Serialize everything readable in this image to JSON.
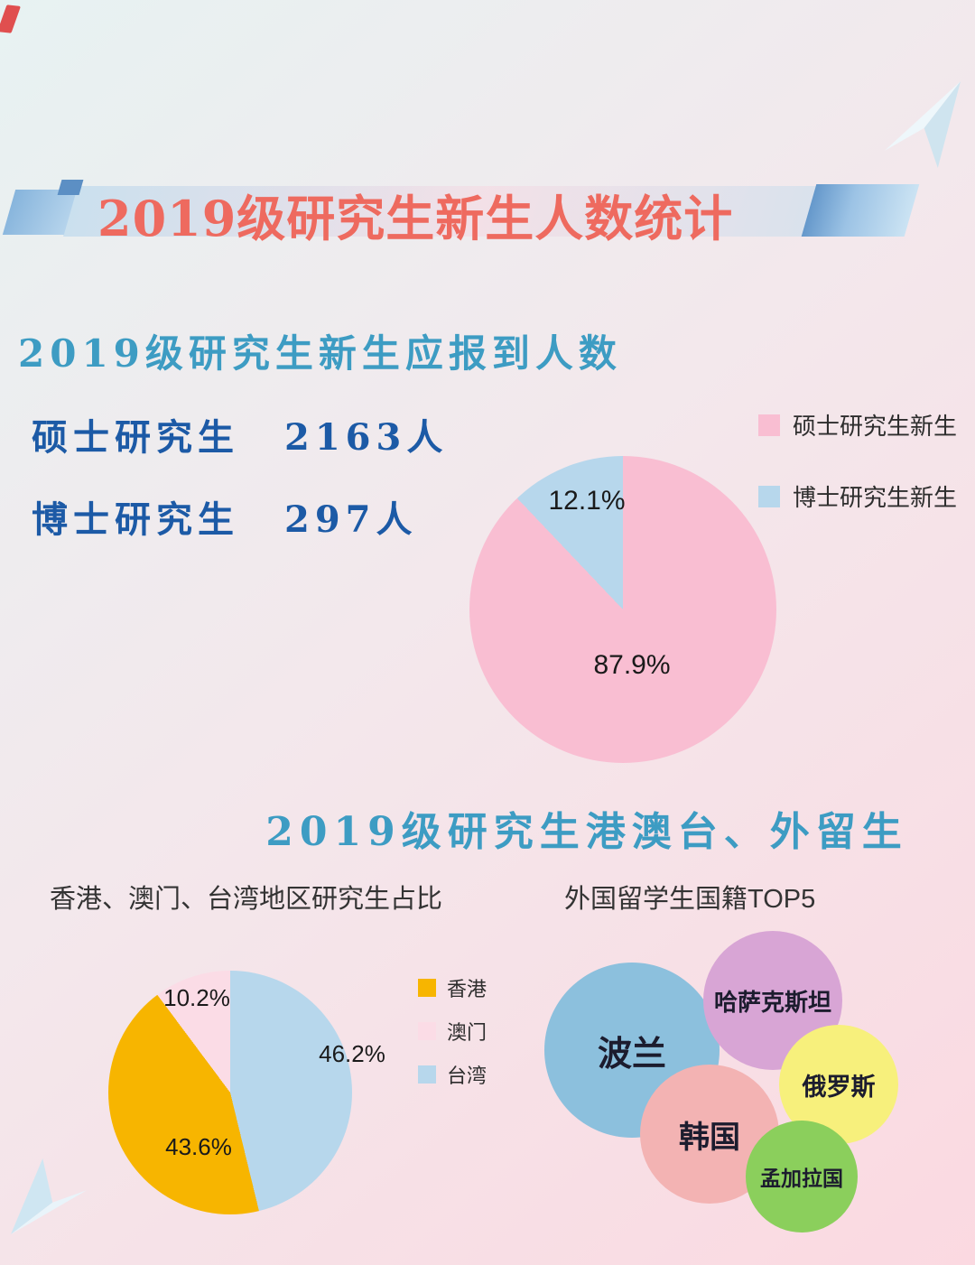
{
  "page": {
    "title": "2019级研究生新生人数统计"
  },
  "section1": {
    "heading": "2019级研究生新生应报到人数",
    "stats": [
      {
        "label": "硕士研究生",
        "value": "2163人"
      },
      {
        "label": "博士研究生",
        "value": "297人"
      }
    ]
  },
  "section2": {
    "heading": "2019级研究生港澳台、外留生"
  },
  "chart_data": [
    {
      "type": "pie",
      "title": "2019级研究生新生应报到人数",
      "labels": [
        "硕士研究生新生",
        "博士研究生新生"
      ],
      "values": [
        87.9,
        12.1
      ],
      "unit": "percent",
      "value_labels": [
        "87.9%",
        "12.1%"
      ],
      "colors": [
        "#f9bed2",
        "#b7d7ec"
      ],
      "draw_order": [
        0,
        1
      ],
      "legend_position": "right"
    },
    {
      "type": "pie",
      "title": "香港、澳门、台湾地区研究生占比",
      "labels": [
        "香港",
        "澳门",
        "台湾"
      ],
      "values": [
        43.6,
        10.2,
        46.2
      ],
      "unit": "percent",
      "value_labels": [
        "43.6%",
        "10.2%",
        "46.2%"
      ],
      "colors": [
        "#f7b500",
        "#fbdce6",
        "#b7d7ec"
      ],
      "draw_order": [
        2,
        0,
        1
      ],
      "legend_position": "right"
    },
    {
      "type": "bubble",
      "title": "外国留学生国籍TOP5",
      "items": [
        {
          "label": "波兰",
          "color": "#8cc0dd"
        },
        {
          "label": "哈萨克斯坦",
          "color": "#d8a5d5"
        },
        {
          "label": "俄罗斯",
          "color": "#f7f07c"
        },
        {
          "label": "韩国",
          "color": "#f3b3b3"
        },
        {
          "label": "孟加拉国",
          "color": "#8bcf5c"
        }
      ]
    }
  ]
}
